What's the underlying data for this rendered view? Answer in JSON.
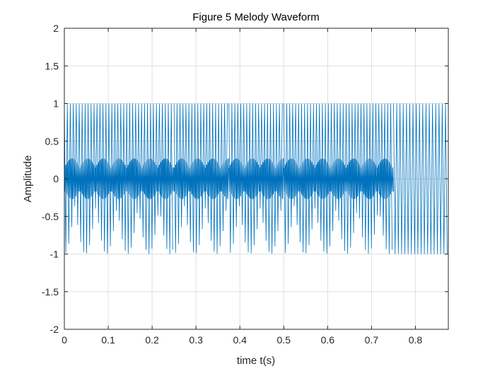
{
  "chart_data": {
    "type": "line",
    "title": "Figure 5 Melody Waveform",
    "xlabel": "time t(s)",
    "ylabel": "Amplitude",
    "xlim": [
      0,
      0.875
    ],
    "ylim": [
      -2,
      2
    ],
    "xticks": [
      0,
      0.1,
      0.2,
      0.3,
      0.4,
      0.5,
      0.6,
      0.7,
      0.8
    ],
    "xtick_labels": [
      "0",
      "0.1",
      "0.2",
      "0.3",
      "0.4",
      "0.5",
      "0.6",
      "0.7",
      "0.8"
    ],
    "yticks": [
      2,
      1.5,
      1,
      0.5,
      0,
      -0.5,
      -1,
      -1.5,
      -2
    ],
    "ytick_labels": [
      "2",
      "1.5",
      "1",
      "0.5",
      "0",
      "-0.5",
      "-1",
      "-1.5",
      "-2"
    ],
    "grid": true,
    "series": [
      {
        "color": "#0072bd",
        "amplitude": 1,
        "segments": [
          {
            "t_start": 0.0,
            "t_end": 0.25
          },
          {
            "t_start": 0.25,
            "t_end": 0.375
          },
          {
            "t_start": 0.375,
            "t_end": 0.5
          },
          {
            "t_start": 0.5,
            "t_end": 0.75
          },
          {
            "t_start": 0.75,
            "t_end": 0.875
          }
        ]
      }
    ]
  }
}
